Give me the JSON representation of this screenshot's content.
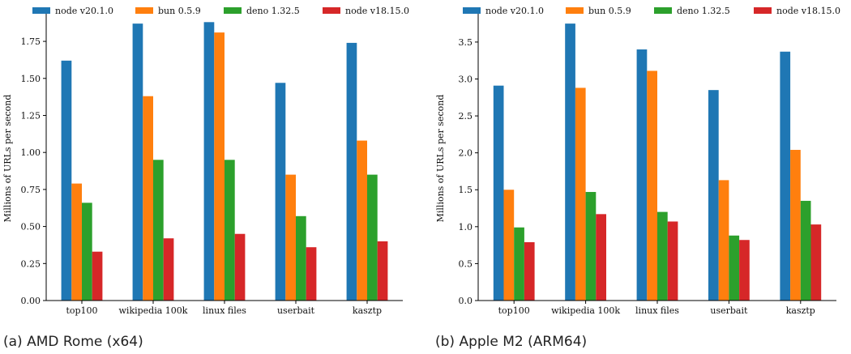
{
  "captions": [
    "(a) AMD Rome (x64)",
    "(b) Apple M2 (ARM64)"
  ],
  "colors": {
    "node v20.1.0": "#1f77b4",
    "bun 0.5.9": "#ff7f0e",
    "deno 1.32.5": "#2ca02c",
    "node v18.15.0": "#d62728"
  },
  "chart_data": [
    {
      "type": "bar",
      "title": "",
      "xlabel": "",
      "ylabel": "Millions of URLs per second",
      "categories": [
        "top100",
        "wikipedia 100k",
        "linux files",
        "userbait",
        "kasztp"
      ],
      "ylim": [
        0,
        1.92
      ],
      "yticks": [
        "0.00",
        "0.25",
        "0.50",
        "0.75",
        "1.00",
        "1.25",
        "1.50",
        "1.75"
      ],
      "legend": "top",
      "grid": false,
      "series": [
        {
          "name": "node v20.1.0",
          "values": [
            1.62,
            1.87,
            1.88,
            1.47,
            1.74
          ]
        },
        {
          "name": "bun 0.5.9",
          "values": [
            0.79,
            1.38,
            1.81,
            0.85,
            1.08
          ]
        },
        {
          "name": "deno 1.32.5",
          "values": [
            0.66,
            0.95,
            0.95,
            0.57,
            0.85
          ]
        },
        {
          "name": "node v18.15.0",
          "values": [
            0.33,
            0.42,
            0.45,
            0.36,
            0.4
          ]
        }
      ]
    },
    {
      "type": "bar",
      "title": "",
      "xlabel": "",
      "ylabel": "Millions of URLs per second",
      "categories": [
        "top100",
        "wikipedia 100k",
        "linux files",
        "userbait",
        "kasztp"
      ],
      "ylim": [
        0,
        3.85
      ],
      "yticks": [
        "0.0",
        "0.5",
        "1.0",
        "1.5",
        "2.0",
        "2.5",
        "3.0",
        "3.5"
      ],
      "legend": "top",
      "grid": false,
      "series": [
        {
          "name": "node v20.1.0",
          "values": [
            2.91,
            3.75,
            3.4,
            2.85,
            3.37
          ]
        },
        {
          "name": "bun 0.5.9",
          "values": [
            1.5,
            2.88,
            3.11,
            1.63,
            2.04
          ]
        },
        {
          "name": "deno 1.32.5",
          "values": [
            0.99,
            1.47,
            1.2,
            0.88,
            1.35
          ]
        },
        {
          "name": "node v18.15.0",
          "values": [
            0.79,
            1.17,
            1.07,
            0.82,
            1.03
          ]
        }
      ]
    }
  ]
}
